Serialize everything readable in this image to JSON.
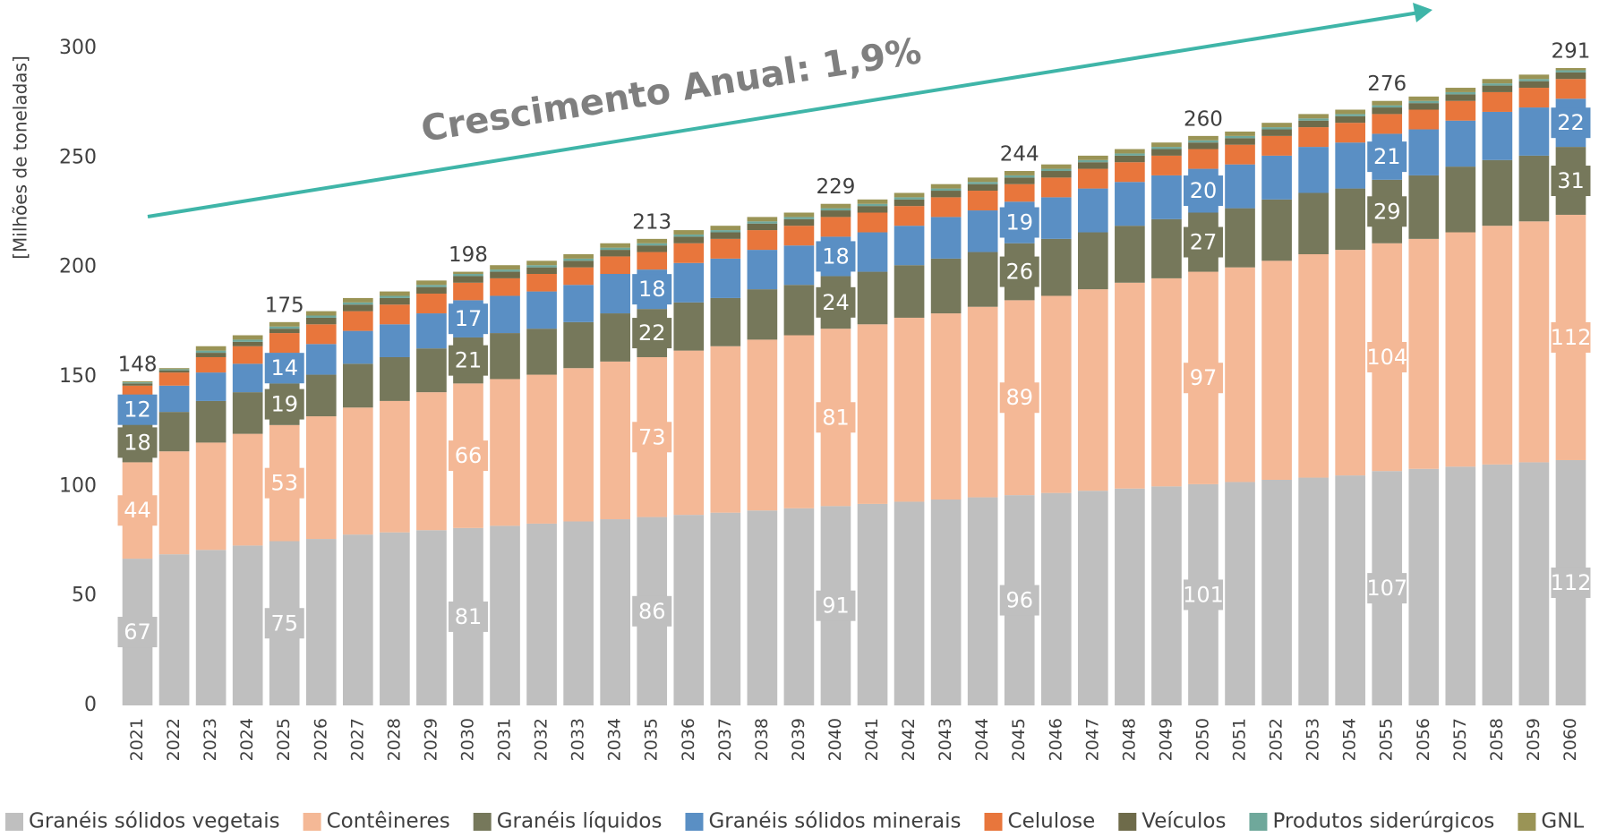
{
  "chart_data": {
    "type": "stacked_bar",
    "y_label": "[Milhões de toneladas]",
    "annotation": "Crescimento Anual: 1,9%",
    "categories": [
      "2021",
      "2022",
      "2023",
      "2024",
      "2025",
      "2026",
      "2027",
      "2028",
      "2029",
      "2030",
      "2031",
      "2032",
      "2033",
      "2034",
      "2035",
      "2036",
      "2037",
      "2038",
      "2039",
      "2040",
      "2041",
      "2042",
      "2043",
      "2044",
      "2045",
      "2046",
      "2047",
      "2048",
      "2049",
      "2050",
      "2051",
      "2052",
      "2053",
      "2054",
      "2055",
      "2056",
      "2057",
      "2058",
      "2059",
      "2060"
    ],
    "ylim": [
      0,
      300
    ],
    "yticks": [
      0,
      50,
      100,
      150,
      200,
      250,
      300
    ],
    "grid": false,
    "series": [
      {
        "name": "Granéis sólidos vegetais",
        "color": "#bfbfbf",
        "values": [
          67,
          69,
          71,
          73,
          75,
          76,
          78,
          79,
          80,
          81,
          82,
          83,
          84,
          85,
          86,
          87,
          88,
          89,
          90,
          91,
          92,
          93,
          94,
          95,
          96,
          97,
          98,
          99,
          100,
          101,
          102,
          103,
          104,
          105,
          107,
          108,
          109,
          110,
          111,
          112
        ],
        "value_labels": [
          67,
          null,
          null,
          null,
          75,
          null,
          null,
          null,
          null,
          81,
          null,
          null,
          null,
          null,
          86,
          null,
          null,
          null,
          null,
          91,
          null,
          null,
          null,
          null,
          96,
          null,
          null,
          null,
          null,
          101,
          null,
          null,
          null,
          null,
          107,
          null,
          null,
          null,
          null,
          112
        ]
      },
      {
        "name": "Contêineres",
        "color": "#f4b896",
        "values": [
          44,
          47,
          49,
          51,
          53,
          56,
          58,
          60,
          63,
          66,
          67,
          68,
          70,
          72,
          73,
          75,
          76,
          78,
          79,
          81,
          82,
          84,
          85,
          87,
          89,
          90,
          92,
          94,
          95,
          97,
          98,
          100,
          102,
          103,
          104,
          105,
          107,
          109,
          110,
          112
        ],
        "value_labels": [
          44,
          null,
          null,
          null,
          53,
          null,
          null,
          null,
          null,
          66,
          null,
          null,
          null,
          null,
          73,
          null,
          null,
          null,
          null,
          81,
          null,
          null,
          null,
          null,
          89,
          null,
          null,
          null,
          null,
          97,
          null,
          null,
          null,
          null,
          104,
          null,
          null,
          null,
          null,
          112
        ]
      },
      {
        "name": "Granéis líquidos",
        "color": "#76785b",
        "values": [
          18,
          18,
          19,
          19,
          19,
          19,
          20,
          20,
          20,
          21,
          21,
          21,
          21,
          22,
          22,
          22,
          22,
          23,
          23,
          24,
          24,
          24,
          25,
          25,
          26,
          26,
          26,
          26,
          27,
          27,
          27,
          28,
          28,
          28,
          29,
          29,
          30,
          30,
          30,
          31
        ],
        "value_labels": [
          18,
          null,
          null,
          null,
          19,
          null,
          null,
          null,
          null,
          21,
          null,
          null,
          null,
          null,
          22,
          null,
          null,
          null,
          null,
          24,
          null,
          null,
          null,
          null,
          26,
          null,
          null,
          null,
          null,
          27,
          null,
          null,
          null,
          null,
          29,
          null,
          null,
          null,
          null,
          31
        ]
      },
      {
        "name": "Granéis sólidos minerais",
        "color": "#5a8fc4",
        "values": [
          12,
          12,
          13,
          13,
          14,
          14,
          15,
          15,
          16,
          17,
          17,
          17,
          17,
          18,
          18,
          18,
          18,
          18,
          18,
          18,
          18,
          18,
          19,
          19,
          19,
          19,
          20,
          20,
          20,
          20,
          20,
          20,
          21,
          21,
          21,
          21,
          21,
          22,
          22,
          22
        ],
        "value_labels": [
          12,
          null,
          null,
          null,
          14,
          null,
          null,
          null,
          null,
          17,
          null,
          null,
          null,
          null,
          18,
          null,
          null,
          null,
          null,
          18,
          null,
          null,
          null,
          null,
          19,
          null,
          null,
          null,
          null,
          20,
          null,
          null,
          null,
          null,
          21,
          null,
          null,
          null,
          null,
          22
        ]
      },
      {
        "name": "Celulose",
        "color": "#e8763c",
        "values": [
          5,
          6,
          7,
          8,
          9,
          9,
          9,
          9,
          9,
          8,
          8,
          8,
          8,
          8,
          8,
          9,
          9,
          9,
          9,
          9,
          9,
          9,
          9,
          9,
          8,
          9,
          9,
          9,
          9,
          9,
          9,
          9,
          9,
          9,
          9,
          9,
          9,
          9,
          9,
          9
        ]
      },
      {
        "name": "Veículos",
        "color": "#6e6b4a",
        "values": [
          1,
          1,
          2,
          2,
          2,
          3,
          3,
          3,
          3,
          3,
          3,
          3,
          3,
          3,
          3,
          3,
          3,
          3,
          3,
          3,
          3,
          3,
          3,
          3,
          3,
          3,
          3,
          3,
          3,
          3,
          3,
          3,
          3,
          3,
          3,
          3,
          3,
          3,
          3,
          3
        ]
      },
      {
        "name": "Produtos siderúrgicos",
        "color": "#6fa89b",
        "values": [
          0.5,
          0.5,
          1,
          1,
          1,
          1,
          1,
          1,
          1,
          1,
          1,
          1,
          1,
          1,
          1,
          1,
          1,
          1,
          1,
          1,
          1,
          1,
          1,
          1,
          1,
          1,
          1,
          1,
          1,
          1,
          1,
          1,
          1,
          1,
          1,
          1,
          1,
          1,
          1,
          1
        ]
      },
      {
        "name": "GNL",
        "color": "#9a9456",
        "values": [
          0.5,
          0.5,
          2,
          2,
          2,
          2,
          2,
          2,
          2,
          1,
          2,
          2,
          2,
          2,
          2,
          2,
          2,
          2,
          2,
          2,
          2,
          2,
          2,
          2,
          2,
          2,
          2,
          2,
          2,
          2,
          2,
          2,
          2,
          2,
          2,
          2,
          2,
          2,
          2,
          1
        ]
      }
    ],
    "totals": [
      148,
      null,
      null,
      null,
      175,
      null,
      null,
      null,
      null,
      198,
      null,
      null,
      null,
      null,
      213,
      null,
      null,
      null,
      null,
      229,
      null,
      null,
      null,
      null,
      244,
      null,
      null,
      null,
      null,
      260,
      null,
      null,
      null,
      null,
      276,
      null,
      null,
      null,
      null,
      291
    ]
  }
}
